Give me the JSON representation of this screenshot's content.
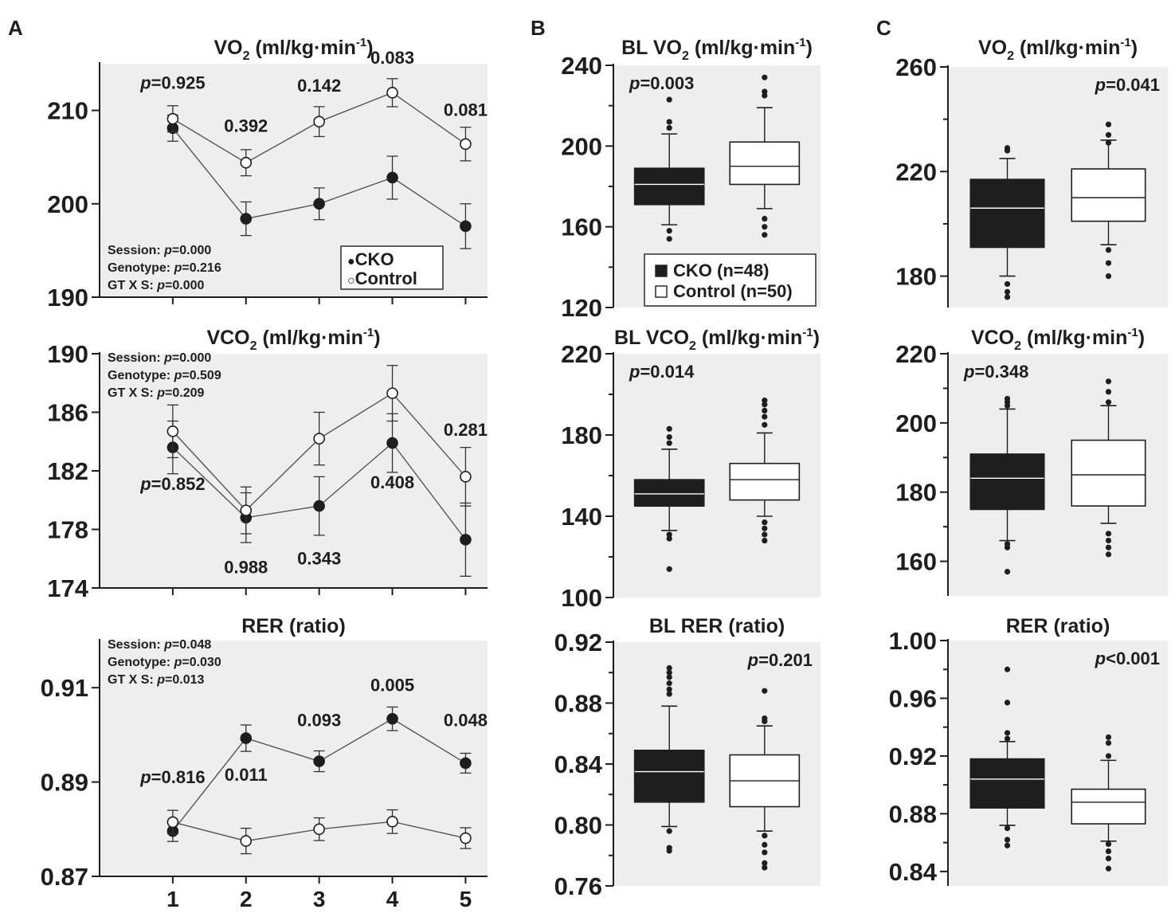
{
  "panel_labels": {
    "A": "A",
    "B": "B",
    "C": "C"
  },
  "colors": {
    "plot_bg": "#eeeeee",
    "ink": "#1e1e1e",
    "cko": "#1e1e1e",
    "control": "#ffffff"
  },
  "chart_data": [
    {
      "id": "A1",
      "type": "line",
      "title": "VO",
      "title_sub": "2",
      "title_unit": " (ml/kg·min",
      "title_sup": "-1",
      "title_end": ")",
      "ylim": [
        190,
        215
      ],
      "yticks": [
        190,
        200,
        210
      ],
      "xlim": [
        0,
        5.3
      ],
      "x": [
        1,
        2,
        3,
        4,
        5
      ],
      "xticks": [],
      "series": [
        {
          "name": "CKO",
          "fill": "filled",
          "values": [
            208.1,
            198.4,
            200.0,
            202.8,
            197.6
          ],
          "errors": [
            1.4,
            1.8,
            1.7,
            2.3,
            2.4
          ]
        },
        {
          "name": "Control",
          "fill": "open",
          "values": [
            209.1,
            204.4,
            208.8,
            211.9,
            206.4
          ],
          "errors": [
            1.4,
            1.4,
            1.6,
            1.5,
            1.8
          ]
        }
      ],
      "point_labels": [
        {
          "x": 1,
          "y": 212.3,
          "text": "0.925",
          "italic_p": true
        },
        {
          "x": 2,
          "y": 207.7,
          "text": "0.392",
          "italic_p": false
        },
        {
          "x": 3,
          "y": 212.0,
          "text": "0.142",
          "italic_p": false
        },
        {
          "x": 4,
          "y": 215.0,
          "text": "0.083",
          "italic_p": false
        },
        {
          "x": 5,
          "y": 209.4,
          "text": "0.081",
          "italic_p": false
        }
      ],
      "stats": [
        {
          "prefix": "Session: ",
          "value": "0.000"
        },
        {
          "prefix": "Genotype:  ",
          "value": "0.216"
        },
        {
          "prefix": "GT X S: ",
          "value": "0.000"
        }
      ],
      "stats_pos": "bottom-left",
      "legend": [
        {
          "symbol": "●",
          "label": "CKO"
        },
        {
          "symbol": "○",
          "label": "Control"
        }
      ]
    },
    {
      "id": "A2",
      "type": "line",
      "title": "VCO",
      "title_sub": "2",
      "title_unit": " (ml/kg·min",
      "title_sup": "-1",
      "title_end": ")",
      "ylim": [
        174,
        190
      ],
      "yticks": [
        174,
        178,
        182,
        186,
        190
      ],
      "xlim": [
        0,
        5.3
      ],
      "x": [
        1,
        2,
        3,
        4,
        5
      ],
      "xticks": [],
      "series": [
        {
          "name": "CKO",
          "fill": "filled",
          "values": [
            183.6,
            178.8,
            179.6,
            183.9,
            177.3
          ],
          "errors": [
            1.8,
            1.7,
            2.0,
            2.0,
            2.5
          ]
        },
        {
          "name": "Control",
          "fill": "open",
          "values": [
            184.7,
            179.3,
            184.2,
            187.3,
            181.6
          ],
          "errors": [
            1.8,
            1.6,
            1.8,
            1.9,
            2.0
          ]
        }
      ],
      "point_labels": [
        {
          "x": 1,
          "y": 180.7,
          "text": "0.852",
          "italic_p": true
        },
        {
          "x": 2,
          "y": 175.0,
          "text": "0.988",
          "italic_p": false
        },
        {
          "x": 3,
          "y": 175.6,
          "text": "0.343",
          "italic_p": false
        },
        {
          "x": 4,
          "y": 180.8,
          "text": "0.408",
          "italic_p": false
        },
        {
          "x": 5,
          "y": 184.4,
          "text": "0.281",
          "italic_p": false
        }
      ],
      "stats": [
        {
          "prefix": "Session: ",
          "value": "0.000"
        },
        {
          "prefix": "Genotype:  ",
          "value": "0.509"
        },
        {
          "prefix": "GT X S: ",
          "value": "0.209"
        }
      ],
      "stats_pos": "top-left"
    },
    {
      "id": "A3",
      "type": "line",
      "title": "RER (ratio)",
      "ylim": [
        0.87,
        0.92
      ],
      "yticks": [
        0.87,
        0.89,
        0.91
      ],
      "xlim": [
        0,
        5.3
      ],
      "x": [
        1,
        2,
        3,
        4,
        5
      ],
      "xticks": [
        "1",
        "2",
        "3",
        "4",
        "5"
      ],
      "series": [
        {
          "name": "CKO",
          "fill": "filled",
          "values": [
            0.8796,
            0.8993,
            0.8944,
            0.9034,
            0.894
          ],
          "errors": [
            0.0022,
            0.0028,
            0.0022,
            0.0025,
            0.0021
          ]
        },
        {
          "name": "Control",
          "fill": "open",
          "values": [
            0.8815,
            0.8775,
            0.88,
            0.8816,
            0.8781
          ],
          "errors": [
            0.0025,
            0.0027,
            0.0024,
            0.0025,
            0.0022
          ]
        }
      ],
      "point_labels": [
        {
          "x": 1,
          "y": 0.8898,
          "text": "0.816",
          "italic_p": true
        },
        {
          "x": 2,
          "y": 0.8903,
          "text": "0.011",
          "italic_p": false
        },
        {
          "x": 3,
          "y": 0.9018,
          "text": "0.093",
          "italic_p": false
        },
        {
          "x": 4,
          "y": 0.9093,
          "text": "0.005",
          "italic_p": false
        },
        {
          "x": 5,
          "y": 0.9018,
          "text": "0.048",
          "italic_p": false
        }
      ],
      "stats": [
        {
          "prefix": "Session: ",
          "value": "0.048"
        },
        {
          "prefix": "Genotype:  ",
          "value": "0.030"
        },
        {
          "prefix": "GT X S: ",
          "value": "0.013"
        }
      ],
      "stats_pos": "top-left"
    },
    {
      "id": "B1",
      "type": "box",
      "title": "BL VO",
      "title_sub": "2",
      "title_unit": " (ml/kg·min",
      "title_sup": "-1",
      "title_end": ")",
      "ylim": [
        120,
        240
      ],
      "yticks": [
        120,
        160,
        200,
        240
      ],
      "minor": [
        140,
        180,
        220
      ],
      "boxes": [
        {
          "name": "CKO",
          "fill": "filled",
          "q1": 171,
          "median": 181,
          "q3": 189,
          "whisker_low": 161,
          "whisker_high": 206,
          "outliers": [
            158,
            154,
            209,
            212,
            223
          ]
        },
        {
          "name": "Control",
          "fill": "open",
          "q1": 181,
          "median": 190,
          "q3": 202,
          "whisker_low": 169,
          "whisker_high": 219,
          "outliers": [
            164,
            160,
            156,
            225,
            227,
            234
          ]
        }
      ],
      "p_label": {
        "text": "0.003",
        "position": "top-left"
      },
      "legend": [
        {
          "label": "CKO (n=48)",
          "fill": "filled"
        },
        {
          "label": "Control (n=50)",
          "fill": "open"
        }
      ]
    },
    {
      "id": "B2",
      "type": "box",
      "title": "BL VCO",
      "title_sub": "2",
      "title_unit": " (ml/kg·min",
      "title_sup": "-1",
      "title_end": ")",
      "ylim": [
        100,
        220
      ],
      "yticks": [
        100,
        140,
        180,
        220
      ],
      "minor": [
        120,
        160,
        200
      ],
      "boxes": [
        {
          "name": "CKO",
          "fill": "filled",
          "q1": 145,
          "median": 151,
          "q3": 158,
          "whisker_low": 133,
          "whisker_high": 173,
          "outliers": [
            131,
            129,
            114,
            176,
            179,
            183
          ]
        },
        {
          "name": "Control",
          "fill": "open",
          "q1": 148,
          "median": 158,
          "q3": 166,
          "whisker_low": 140,
          "whisker_high": 181,
          "outliers": [
            137,
            134,
            131,
            128,
            185,
            189,
            192,
            195,
            197
          ]
        }
      ],
      "p_label": {
        "text": "0.014",
        "position": "top-left"
      }
    },
    {
      "id": "B3",
      "type": "box",
      "title": "BL RER (ratio)",
      "ylim": [
        0.76,
        0.92
      ],
      "yticks": [
        0.76,
        0.8,
        0.84,
        0.88,
        0.92
      ],
      "minor": [
        0.78,
        0.82,
        0.86,
        0.9
      ],
      "boxes": [
        {
          "name": "CKO",
          "fill": "filled",
          "q1": 0.815,
          "median": 0.835,
          "q3": 0.849,
          "whisker_low": 0.799,
          "whisker_high": 0.878,
          "outliers": [
            0.796,
            0.785,
            0.783,
            0.886,
            0.889,
            0.893,
            0.897,
            0.9,
            0.903
          ]
        },
        {
          "name": "Control",
          "fill": "open",
          "q1": 0.812,
          "median": 0.829,
          "q3": 0.846,
          "whisker_low": 0.796,
          "whisker_high": 0.865,
          "outliers": [
            0.793,
            0.787,
            0.782,
            0.775,
            0.772,
            0.868,
            0.87,
            0.888
          ]
        }
      ],
      "p_label": {
        "text": "0.201",
        "position": "top-right"
      }
    },
    {
      "id": "C1",
      "type": "box",
      "title": "VO",
      "title_sub": "2",
      "title_unit": " (ml/kg·min",
      "title_sup": "-1",
      "title_end": ")",
      "ylim": [
        168,
        260
      ],
      "yticks": [
        180,
        220,
        260
      ],
      "minor": [
        200,
        240
      ],
      "boxes": [
        {
          "name": "CKO",
          "fill": "filled",
          "q1": 191,
          "median": 206,
          "q3": 217,
          "whisker_low": 180,
          "whisker_high": 225,
          "outliers": [
            177,
            174,
            172,
            228,
            229
          ]
        },
        {
          "name": "Control",
          "fill": "open",
          "q1": 201,
          "median": 210,
          "q3": 221,
          "whisker_low": 192,
          "whisker_high": 232,
          "outliers": [
            190,
            185,
            180,
            231,
            234,
            238
          ]
        }
      ],
      "p_label": {
        "text": "0.041",
        "position": "top-right"
      }
    },
    {
      "id": "C2",
      "type": "box",
      "title": "VCO",
      "title_sub": "2",
      "title_unit": " (ml/kg·min",
      "title_sup": "-1",
      "title_end": ")",
      "ylim": [
        150,
        220
      ],
      "yticks": [
        160,
        180,
        200,
        220
      ],
      "minor": [
        170,
        190,
        210
      ],
      "boxes": [
        {
          "name": "CKO",
          "fill": "filled",
          "q1": 175,
          "median": 184,
          "q3": 191,
          "whisker_low": 166,
          "whisker_high": 204,
          "outliers": [
            165,
            164,
            157,
            205,
            206,
            207
          ]
        },
        {
          "name": "Control",
          "fill": "open",
          "q1": 176,
          "median": 185,
          "q3": 195,
          "whisker_low": 171,
          "whisker_high": 205,
          "outliers": [
            168,
            166,
            164,
            162,
            206,
            209,
            212
          ]
        }
      ],
      "p_label": {
        "text": "0.348",
        "position": "top-left"
      }
    },
    {
      "id": "C3",
      "type": "box",
      "title": "RER (ratio)",
      "ylim": [
        0.83,
        1.0
      ],
      "yticks": [
        0.84,
        0.88,
        0.92,
        0.96,
        1.0
      ],
      "minor": [
        0.86,
        0.9,
        0.94,
        0.98
      ],
      "boxes": [
        {
          "name": "CKO",
          "fill": "filled",
          "q1": 0.884,
          "median": 0.904,
          "q3": 0.918,
          "whisker_low": 0.872,
          "whisker_high": 0.93,
          "outliers": [
            0.87,
            0.862,
            0.858,
            0.932,
            0.936,
            0.957,
            0.98
          ]
        },
        {
          "name": "Control",
          "fill": "open",
          "q1": 0.873,
          "median": 0.888,
          "q3": 0.897,
          "whisker_low": 0.861,
          "whisker_high": 0.917,
          "outliers": [
            0.859,
            0.854,
            0.849,
            0.842,
            0.92,
            0.929,
            0.933
          ]
        }
      ],
      "p_label": {
        "text": "<0.001",
        "position": "top-right"
      }
    }
  ]
}
